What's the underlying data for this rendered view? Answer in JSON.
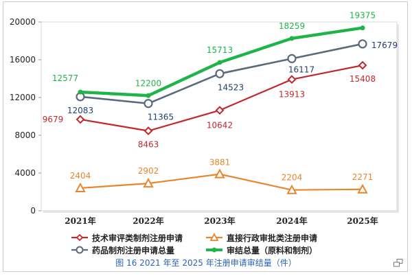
{
  "caption": "图 16 2021 年至 2025 年注册申请审结量（件）",
  "chart_data": {
    "type": "line",
    "categories": [
      "2021年",
      "2022年",
      "2023年",
      "2024年",
      "2025年"
    ],
    "y_ticks": [
      "0",
      "4000",
      "8000",
      "12000",
      "16000",
      "20000"
    ],
    "ylim": [
      0,
      20000
    ],
    "grid": false,
    "legend_position": "bottom",
    "series": [
      {
        "name": "技术审评类制剂注册申请",
        "color": "#c0282d",
        "marker": "diamond",
        "values": [
          9679,
          8463,
          10642,
          13913,
          15408
        ],
        "labels": [
          "9679",
          "8463",
          "10642",
          "13913",
          "15408"
        ]
      },
      {
        "name": "直接行政审批类注册申请",
        "color": "#e8862b",
        "marker": "triangle",
        "values": [
          2404,
          2902,
          3881,
          2204,
          2271
        ],
        "labels": [
          "2404",
          "2902",
          "3881",
          "2204",
          "2271"
        ]
      },
      {
        "name": "药品制剂注册申请总量",
        "color": "#5a6a7e",
        "marker": "circle",
        "values": [
          12083,
          11365,
          14523,
          16117,
          17679
        ],
        "labels": [
          "12083",
          "11365",
          "14523",
          "16117",
          "17679"
        ]
      },
      {
        "name": "审结总量（原料和制剂）",
        "color": "#1fb44a",
        "marker": "dot",
        "values": [
          12577,
          12200,
          15713,
          18259,
          19375
        ],
        "labels": [
          "12577",
          "12200",
          "15713",
          "18259",
          "19375"
        ]
      }
    ]
  }
}
